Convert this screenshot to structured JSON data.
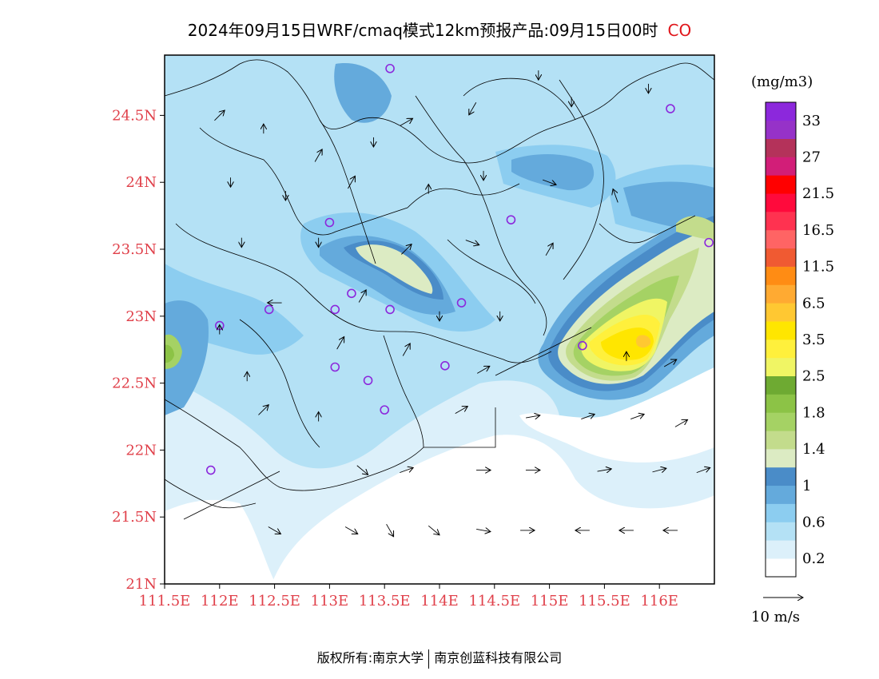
{
  "title": {
    "main": "2024年09月15日WRF/cmaq模式12km预报产品:09月15日00时",
    "species": "CO"
  },
  "map": {
    "lon_range": [
      111.5,
      116.5
    ],
    "lat_range": [
      21.0,
      24.95
    ],
    "lon_ticks": [
      "111.5E",
      "112E",
      "112.5E",
      "113E",
      "113.5E",
      "114E",
      "114.5E",
      "115E",
      "115.5E",
      "116E"
    ],
    "lat_ticks": [
      "21N",
      "21.5N",
      "22N",
      "22.5N",
      "23N",
      "23.5N",
      "24N",
      "24.5N"
    ]
  },
  "colorbar": {
    "unit": "(mg/m3)",
    "colors": [
      "#ffffff",
      "#dcf0fa",
      "#b4e1f5",
      "#8ccdf0",
      "#64aadc",
      "#4a8cc8",
      "#dcebc3",
      "#c3dc8c",
      "#a5d264",
      "#8cc346",
      "#6eaa32",
      "#f0f564",
      "#fff03c",
      "#ffe600",
      "#ffc832",
      "#ffaa32",
      "#ff8c14",
      "#f05a32",
      "#ff6464",
      "#ff3250",
      "#ff0a3c",
      "#ff0000",
      "#d21e78",
      "#b4325a",
      "#9632c8",
      "#8c28dc"
    ],
    "labels": [
      {
        "text": "0.2",
        "index": 1
      },
      {
        "text": "0.6",
        "index": 3
      },
      {
        "text": "1",
        "index": 5
      },
      {
        "text": "1.4",
        "index": 7
      },
      {
        "text": "1.8",
        "index": 9
      },
      {
        "text": "2.5",
        "index": 11
      },
      {
        "text": "3.5",
        "index": 13
      },
      {
        "text": "6.5",
        "index": 15
      },
      {
        "text": "11.5",
        "index": 17
      },
      {
        "text": "16.5",
        "index": 19
      },
      {
        "text": "21.5",
        "index": 21
      },
      {
        "text": "27",
        "index": 23
      },
      {
        "text": "33",
        "index": 25
      }
    ]
  },
  "wind_legend": "10 m/s",
  "footer": {
    "left": "版权所有:南京大学",
    "right": "南京创蓝科技有限公司"
  },
  "stations": [
    [
      113.55,
      24.85
    ],
    [
      116.1,
      24.55
    ],
    [
      113.0,
      23.7
    ],
    [
      114.65,
      23.72
    ],
    [
      116.45,
      23.55
    ],
    [
      112.45,
      23.05
    ],
    [
      113.05,
      23.05
    ],
    [
      113.2,
      23.17
    ],
    [
      113.55,
      23.05
    ],
    [
      114.2,
      23.1
    ],
    [
      112.0,
      22.93
    ],
    [
      113.05,
      22.62
    ],
    [
      113.35,
      22.52
    ],
    [
      114.05,
      22.63
    ],
    [
      115.3,
      22.78
    ],
    [
      113.5,
      22.3
    ],
    [
      111.92,
      21.85
    ]
  ],
  "winds": [
    [
      112.0,
      24.5,
      -45
    ],
    [
      112.4,
      24.4,
      -90
    ],
    [
      112.9,
      24.2,
      -60
    ],
    [
      113.4,
      24.3,
      90
    ],
    [
      113.7,
      24.45,
      -30
    ],
    [
      114.3,
      24.55,
      120
    ],
    [
      114.9,
      24.8,
      90
    ],
    [
      115.2,
      24.6,
      90
    ],
    [
      115.9,
      24.7,
      90
    ],
    [
      112.1,
      24.0,
      90
    ],
    [
      112.6,
      23.9,
      90
    ],
    [
      113.2,
      24.0,
      -60
    ],
    [
      113.9,
      23.95,
      -90
    ],
    [
      114.4,
      24.05,
      90
    ],
    [
      115.0,
      24.0,
      20
    ],
    [
      115.6,
      23.9,
      -110
    ],
    [
      112.2,
      23.55,
      90
    ],
    [
      112.9,
      23.55,
      90
    ],
    [
      113.7,
      23.5,
      -45
    ],
    [
      114.3,
      23.55,
      20
    ],
    [
      115.0,
      23.5,
      -60
    ],
    [
      112.5,
      23.1,
      180
    ],
    [
      113.3,
      23.15,
      -60
    ],
    [
      114.0,
      23.0,
      90
    ],
    [
      114.55,
      23.0,
      90
    ],
    [
      113.1,
      22.8,
      -60
    ],
    [
      113.7,
      22.75,
      -60
    ],
    [
      114.4,
      22.6,
      -30
    ],
    [
      115.7,
      22.7,
      -90
    ],
    [
      116.1,
      22.65,
      -30
    ],
    [
      112.4,
      22.3,
      -45
    ],
    [
      112.9,
      22.25,
      -90
    ],
    [
      114.2,
      22.3,
      -30
    ],
    [
      114.85,
      22.25,
      -10
    ],
    [
      115.35,
      22.25,
      -20
    ],
    [
      115.8,
      22.25,
      -20
    ],
    [
      116.2,
      22.2,
      -30
    ],
    [
      113.3,
      21.85,
      40
    ],
    [
      113.7,
      21.85,
      -20
    ],
    [
      114.4,
      21.85,
      0
    ],
    [
      114.85,
      21.85,
      0
    ],
    [
      115.5,
      21.85,
      -10
    ],
    [
      116.0,
      21.85,
      -15
    ],
    [
      116.4,
      21.85,
      -20
    ],
    [
      112.5,
      21.4,
      30
    ],
    [
      113.2,
      21.4,
      30
    ],
    [
      113.55,
      21.4,
      60
    ],
    [
      113.95,
      21.4,
      40
    ],
    [
      114.4,
      21.4,
      10
    ],
    [
      114.8,
      21.4,
      0
    ],
    [
      115.3,
      21.4,
      180
    ],
    [
      115.7,
      21.4,
      180
    ],
    [
      116.1,
      21.4,
      180
    ],
    [
      112.0,
      22.9,
      -90
    ],
    [
      112.25,
      22.55,
      -90
    ]
  ]
}
